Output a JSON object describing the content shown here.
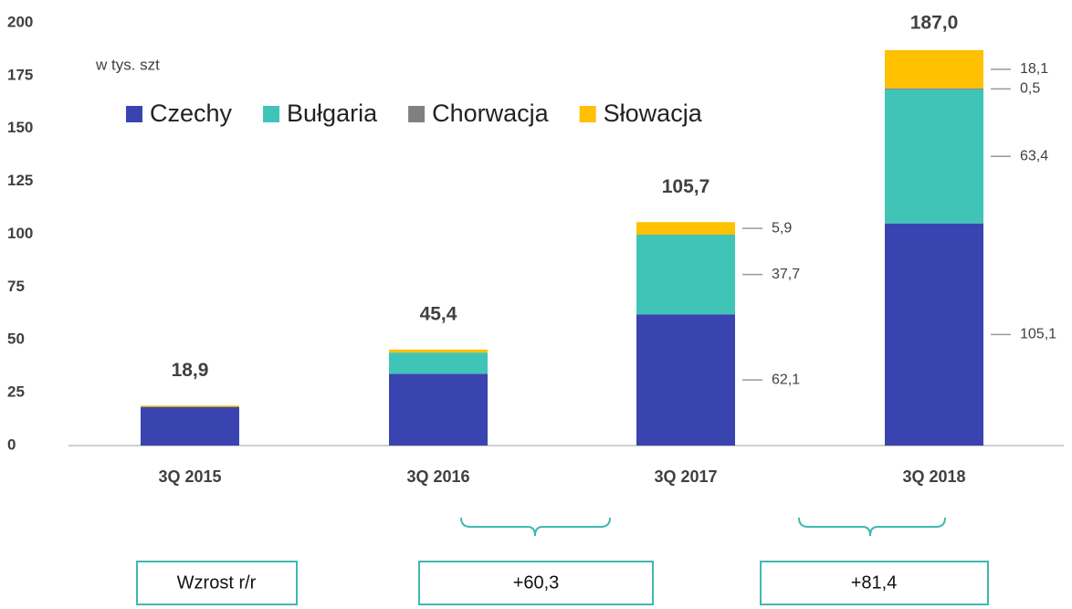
{
  "chart_data": {
    "type": "stacked_bar",
    "annotation": "w tys. szt",
    "categories": [
      "3Q 2015",
      "3Q 2016",
      "3Q 2017",
      "3Q 2018"
    ],
    "series": [
      {
        "name": "Czechy",
        "color": "#3a44b0",
        "values": [
          18.3,
          34.0,
          62.1,
          105.1
        ],
        "value_labels": [
          null,
          null,
          "62,1",
          "105,1"
        ]
      },
      {
        "name": "Bułgaria",
        "color": "#40c4b8",
        "values": [
          0,
          10.0,
          37.7,
          63.4
        ],
        "value_labels": [
          null,
          null,
          "37,7",
          "63,4"
        ]
      },
      {
        "name": "Chorwacja",
        "color": "#808080",
        "values": [
          0,
          0,
          0,
          0.5
        ],
        "value_labels": [
          null,
          null,
          null,
          "0,5"
        ]
      },
      {
        "name": "Słowacja",
        "color": "#ffc000",
        "values": [
          0.6,
          1.4,
          5.9,
          18.1
        ],
        "value_labels": [
          null,
          null,
          "5,9",
          "18,1"
        ]
      }
    ],
    "totals": [
      18.9,
      45.4,
      105.7,
      187.0
    ],
    "total_labels": [
      "18,9",
      "45,4",
      "105,7",
      "187,0"
    ],
    "ylim": [
      0,
      200
    ],
    "yticks": [
      0,
      25,
      50,
      75,
      100,
      125,
      150,
      175,
      200
    ],
    "legend": "top",
    "growth": {
      "label": "Wzrost r/r",
      "values": [
        "+60,3",
        "+81,4"
      ]
    }
  }
}
